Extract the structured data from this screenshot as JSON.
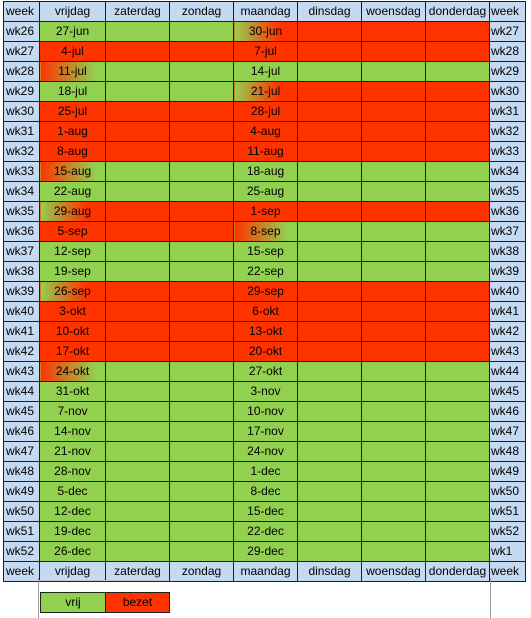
{
  "colors": {
    "vrij": "#92d050",
    "bezet": "#ff3300",
    "header": "#c5d9f1"
  },
  "header": [
    "week",
    "vrijdag",
    "zaterdag",
    "zondag",
    "maandag",
    "dinsdag",
    "woensdag",
    "donderdag",
    "week"
  ],
  "footer": [
    "week",
    "vrijdag",
    "zaterdag",
    "zondag",
    "maandag",
    "dinsdag",
    "woensdag",
    "donderdag",
    "week"
  ],
  "rows": [
    {
      "week": "wk26",
      "fri": "27-jun",
      "mon": "30-jun",
      "week2": "wk27",
      "cells": [
        "g",
        "g",
        "g",
        "gr",
        "r",
        "r",
        "r"
      ]
    },
    {
      "week": "wk27",
      "fri": "4-jul",
      "mon": "7-jul",
      "week2": "wk28",
      "cells": [
        "r",
        "r",
        "r",
        "r",
        "r",
        "r",
        "r"
      ]
    },
    {
      "week": "wk28",
      "fri": "11-jul",
      "mon": "14-jul",
      "week2": "wk29",
      "cells": [
        "rg",
        "g",
        "g",
        "g",
        "g",
        "g",
        "g"
      ]
    },
    {
      "week": "wk29",
      "fri": "18-jul",
      "mon": "21-jul",
      "week2": "wk30",
      "cells": [
        "g",
        "g",
        "g",
        "gr",
        "r",
        "r",
        "r"
      ]
    },
    {
      "week": "wk30",
      "fri": "25-jul",
      "mon": "28-jul",
      "week2": "wk31",
      "cells": [
        "r",
        "r",
        "r",
        "r",
        "r",
        "r",
        "r"
      ]
    },
    {
      "week": "wk31",
      "fri": "1-aug",
      "mon": "4-aug",
      "week2": "wk32",
      "cells": [
        "r",
        "r",
        "r",
        "r",
        "r",
        "r",
        "r"
      ]
    },
    {
      "week": "wk32",
      "fri": "8-aug",
      "mon": "11-aug",
      "week2": "wk33",
      "cells": [
        "r",
        "r",
        "r",
        "r",
        "r",
        "r",
        "r"
      ]
    },
    {
      "week": "wk33",
      "fri": "15-aug",
      "mon": "18-aug",
      "week2": "wk34",
      "cells": [
        "rg",
        "g",
        "g",
        "g",
        "g",
        "g",
        "g"
      ]
    },
    {
      "week": "wk34",
      "fri": "22-aug",
      "mon": "25-aug",
      "week2": "wk35",
      "cells": [
        "g",
        "g",
        "g",
        "g",
        "g",
        "g",
        "g"
      ]
    },
    {
      "week": "wk35",
      "fri": "29-aug",
      "mon": "1-sep",
      "week2": "wk36",
      "cells": [
        "gr",
        "r",
        "r",
        "r",
        "r",
        "r",
        "r"
      ]
    },
    {
      "week": "wk36",
      "fri": "5-sep",
      "mon": "8-sep",
      "week2": "wk37",
      "cells": [
        "r",
        "r",
        "r",
        "rg",
        "g",
        "g",
        "g"
      ]
    },
    {
      "week": "wk37",
      "fri": "12-sep",
      "mon": "15-sep",
      "week2": "wk38",
      "cells": [
        "g",
        "g",
        "g",
        "g",
        "g",
        "g",
        "g"
      ]
    },
    {
      "week": "wk38",
      "fri": "19-sep",
      "mon": "22-sep",
      "week2": "wk39",
      "cells": [
        "g",
        "g",
        "g",
        "g",
        "g",
        "g",
        "g"
      ]
    },
    {
      "week": "wk39",
      "fri": "26-sep",
      "mon": "29-sep",
      "week2": "wk40",
      "cells": [
        "gr",
        "r",
        "r",
        "r",
        "r",
        "r",
        "r"
      ]
    },
    {
      "week": "wk40",
      "fri": "3-okt",
      "mon": "6-okt",
      "week2": "wk41",
      "cells": [
        "r",
        "r",
        "r",
        "r",
        "r",
        "r",
        "r"
      ]
    },
    {
      "week": "wk41",
      "fri": "10-okt",
      "mon": "13-okt",
      "week2": "wk42",
      "cells": [
        "r",
        "r",
        "r",
        "r",
        "r",
        "r",
        "r"
      ]
    },
    {
      "week": "wk42",
      "fri": "17-okt",
      "mon": "20-okt",
      "week2": "wk43",
      "cells": [
        "r",
        "r",
        "r",
        "r",
        "r",
        "r",
        "r"
      ]
    },
    {
      "week": "wk43",
      "fri": "24-okt",
      "mon": "27-okt",
      "week2": "wk44",
      "cells": [
        "rg",
        "g",
        "g",
        "g",
        "g",
        "g",
        "g"
      ]
    },
    {
      "week": "wk44",
      "fri": "31-okt",
      "mon": "3-nov",
      "week2": "wk45",
      "cells": [
        "g",
        "g",
        "g",
        "g",
        "g",
        "g",
        "g"
      ]
    },
    {
      "week": "wk45",
      "fri": "7-nov",
      "mon": "10-nov",
      "week2": "wk46",
      "cells": [
        "g",
        "g",
        "g",
        "g",
        "g",
        "g",
        "g"
      ]
    },
    {
      "week": "wk46",
      "fri": "14-nov",
      "mon": "17-nov",
      "week2": "wk47",
      "cells": [
        "g",
        "g",
        "g",
        "g",
        "g",
        "g",
        "g"
      ]
    },
    {
      "week": "wk47",
      "fri": "21-nov",
      "mon": "24-nov",
      "week2": "wk48",
      "cells": [
        "g",
        "g",
        "g",
        "g",
        "g",
        "g",
        "g"
      ]
    },
    {
      "week": "wk48",
      "fri": "28-nov",
      "mon": "1-dec",
      "week2": "wk49",
      "cells": [
        "g",
        "g",
        "g",
        "g",
        "g",
        "g",
        "g"
      ]
    },
    {
      "week": "wk49",
      "fri": "5-dec",
      "mon": "8-dec",
      "week2": "wk50",
      "cells": [
        "g",
        "g",
        "g",
        "g",
        "g",
        "g",
        "g"
      ]
    },
    {
      "week": "wk50",
      "fri": "12-dec",
      "mon": "15-dec",
      "week2": "wk51",
      "cells": [
        "g",
        "g",
        "g",
        "g",
        "g",
        "g",
        "g"
      ]
    },
    {
      "week": "wk51",
      "fri": "19-dec",
      "mon": "22-dec",
      "week2": "wk52",
      "cells": [
        "g",
        "g",
        "g",
        "g",
        "g",
        "g",
        "g"
      ]
    },
    {
      "week": "wk52",
      "fri": "26-dec",
      "mon": "29-dec",
      "week2": "wk1",
      "cells": [
        "g",
        "g",
        "g",
        "g",
        "g",
        "g",
        "g"
      ]
    }
  ],
  "legend": {
    "vrij": "vrij",
    "bezet": "bezet"
  }
}
